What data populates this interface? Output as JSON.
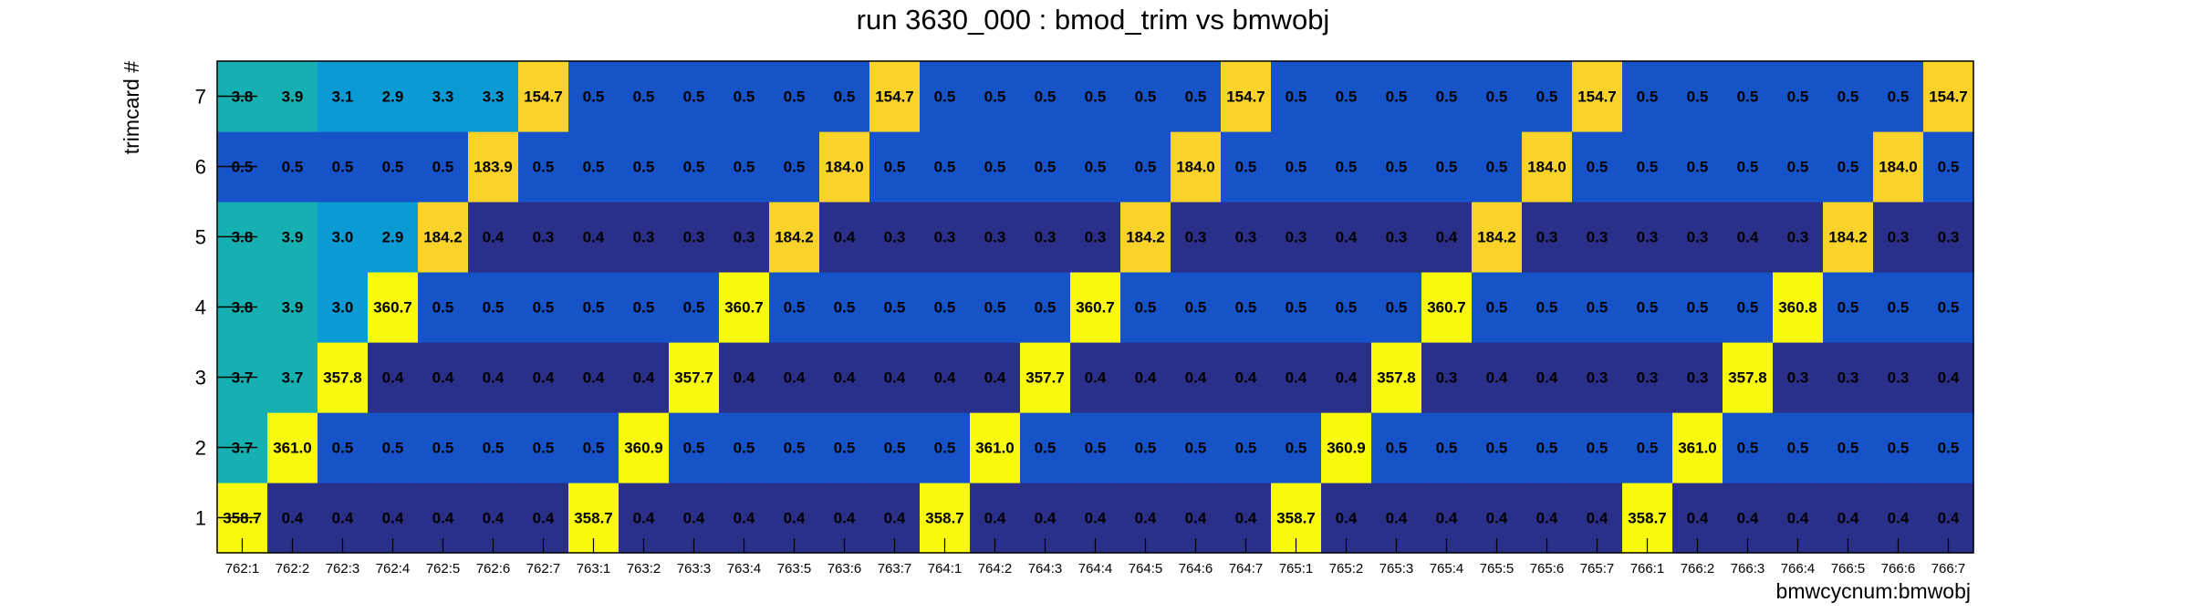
{
  "chart_data": {
    "type": "heatmap",
    "title": "run 3630_000 : bmod_trim vs bmwobj",
    "xlabel": "bmwcycnum:bmwobj",
    "ylabel": "trimcard #",
    "x_categories": [
      "762:1",
      "762:2",
      "762:3",
      "762:4",
      "762:5",
      "762:6",
      "762:7",
      "763:1",
      "763:2",
      "763:3",
      "763:4",
      "763:5",
      "763:6",
      "763:7",
      "764:1",
      "764:2",
      "764:3",
      "764:4",
      "764:5",
      "764:6",
      "764:7",
      "765:1",
      "765:2",
      "765:3",
      "765:4",
      "765:5",
      "765:6",
      "765:7",
      "766:1",
      "766:2",
      "766:3",
      "766:4",
      "766:5",
      "766:6",
      "766:7"
    ],
    "y_categories": [
      "1",
      "2",
      "3",
      "4",
      "5",
      "6",
      "7"
    ],
    "colormap": [
      "#2a2f8a",
      "#1652c8",
      "#0a9ad4",
      "#17b0b2",
      "#f9d32a",
      "#f9f90e"
    ],
    "rows": [
      {
        "y": "1",
        "values": [
          "358.7",
          "0.4",
          "0.4",
          "0.4",
          "0.4",
          "0.4",
          "0.4",
          "358.7",
          "0.4",
          "0.4",
          "0.4",
          "0.4",
          "0.4",
          "0.4",
          "358.7",
          "0.4",
          "0.4",
          "0.4",
          "0.4",
          "0.4",
          "0.4",
          "358.7",
          "0.4",
          "0.4",
          "0.4",
          "0.4",
          "0.4",
          "0.4",
          "358.7",
          "0.4",
          "0.4",
          "0.4",
          "0.4",
          "0.4",
          "0.4"
        ]
      },
      {
        "y": "2",
        "values": [
          "3.7",
          "361.0",
          "0.5",
          "0.5",
          "0.5",
          "0.5",
          "0.5",
          "0.5",
          "360.9",
          "0.5",
          "0.5",
          "0.5",
          "0.5",
          "0.5",
          "0.5",
          "361.0",
          "0.5",
          "0.5",
          "0.5",
          "0.5",
          "0.5",
          "0.5",
          "360.9",
          "0.5",
          "0.5",
          "0.5",
          "0.5",
          "0.5",
          "0.5",
          "361.0",
          "0.5",
          "0.5",
          "0.5",
          "0.5",
          "0.5"
        ]
      },
      {
        "y": "3",
        "values": [
          "3.7",
          "3.7",
          "357.8",
          "0.4",
          "0.4",
          "0.4",
          "0.4",
          "0.4",
          "0.4",
          "357.7",
          "0.4",
          "0.4",
          "0.4",
          "0.4",
          "0.4",
          "0.4",
          "357.7",
          "0.4",
          "0.4",
          "0.4",
          "0.4",
          "0.4",
          "0.4",
          "357.8",
          "0.3",
          "0.4",
          "0.4",
          "0.3",
          "0.3",
          "0.3",
          "357.8",
          "0.3",
          "0.3",
          "0.3",
          "0.4"
        ]
      },
      {
        "y": "4",
        "values": [
          "3.8",
          "3.9",
          "3.0",
          "360.7",
          "0.5",
          "0.5",
          "0.5",
          "0.5",
          "0.5",
          "0.5",
          "360.7",
          "0.5",
          "0.5",
          "0.5",
          "0.5",
          "0.5",
          "0.5",
          "360.7",
          "0.5",
          "0.5",
          "0.5",
          "0.5",
          "0.5",
          "0.5",
          "360.7",
          "0.5",
          "0.5",
          "0.5",
          "0.5",
          "0.5",
          "0.5",
          "360.8",
          "0.5",
          "0.5",
          "0.5"
        ]
      },
      {
        "y": "5",
        "values": [
          "3.8",
          "3.9",
          "3.0",
          "2.9",
          "184.2",
          "0.4",
          "0.3",
          "0.4",
          "0.3",
          "0.3",
          "0.3",
          "184.2",
          "0.4",
          "0.3",
          "0.3",
          "0.3",
          "0.3",
          "0.3",
          "184.2",
          "0.3",
          "0.3",
          "0.3",
          "0.4",
          "0.3",
          "0.4",
          "184.2",
          "0.3",
          "0.3",
          "0.3",
          "0.3",
          "0.4",
          "0.3",
          "184.2",
          "0.3",
          "0.3"
        ]
      },
      {
        "y": "6",
        "values": [
          "0.5",
          "0.5",
          "0.5",
          "0.5",
          "0.5",
          "183.9",
          "0.5",
          "0.5",
          "0.5",
          "0.5",
          "0.5",
          "0.5",
          "184.0",
          "0.5",
          "0.5",
          "0.5",
          "0.5",
          "0.5",
          "0.5",
          "184.0",
          "0.5",
          "0.5",
          "0.5",
          "0.5",
          "0.5",
          "0.5",
          "184.0",
          "0.5",
          "0.5",
          "0.5",
          "0.5",
          "0.5",
          "0.5",
          "184.0",
          "0.5"
        ]
      },
      {
        "y": "7",
        "values": [
          "3.8",
          "3.9",
          "3.1",
          "2.9",
          "3.3",
          "3.3",
          "154.7",
          "0.5",
          "0.5",
          "0.5",
          "0.5",
          "0.5",
          "0.5",
          "154.7",
          "0.5",
          "0.5",
          "0.5",
          "0.5",
          "0.5",
          "0.5",
          "154.7",
          "0.5",
          "0.5",
          "0.5",
          "0.5",
          "0.5",
          "0.5",
          "154.7",
          "0.5",
          "0.5",
          "0.5",
          "0.5",
          "0.5",
          "0.5",
          "154.7"
        ]
      }
    ]
  }
}
